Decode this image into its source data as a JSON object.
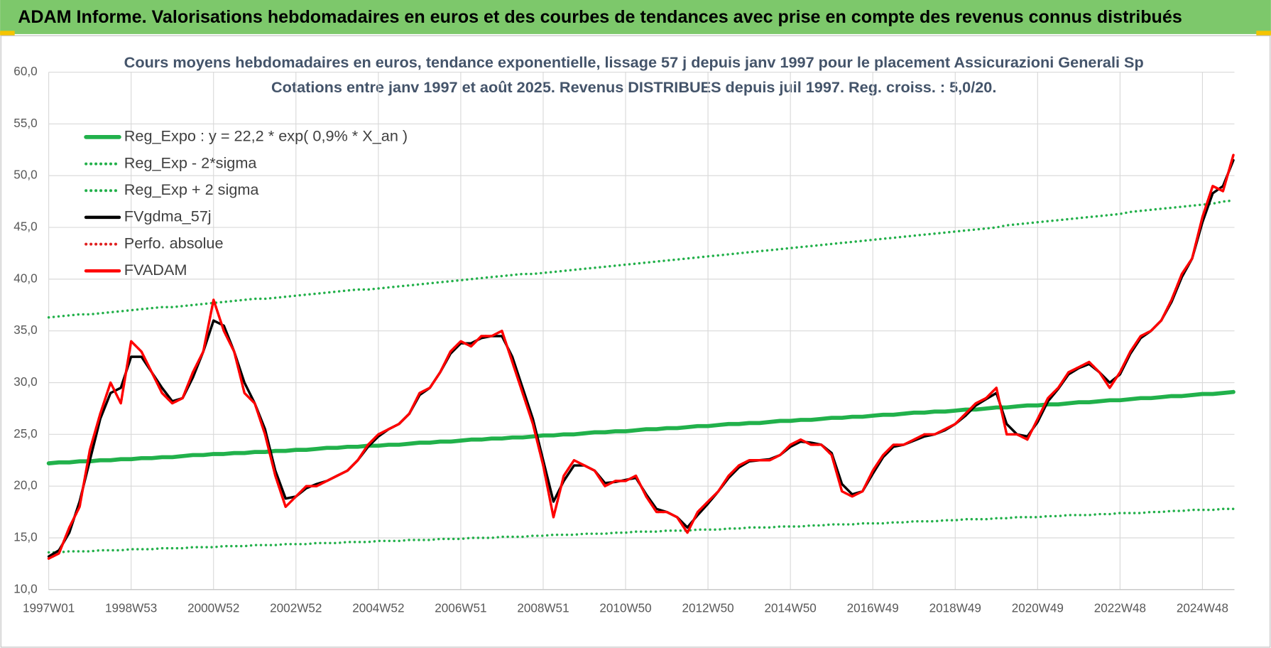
{
  "header": {
    "title": "ADAM Informe. Valorisations hebdomadaires en euros et des courbes de tendances avec prise en compte des revenus connus distribués"
  },
  "chart_data": {
    "type": "line",
    "title": "Cours moyens hebdomadaires en euros, tendance exponentielle, lissage 57 j depuis janv 1997 pour le placement Assicurazioni Generali Sp",
    "subtitle": "Cotations entre janv 1997 et août 2025. Revenus DISTRIBUES depuis juil 1997. Reg. croiss. : 5,0/20.",
    "categories": [
      "1997W01",
      null,
      null,
      null,
      null,
      null,
      null,
      null,
      "1998W53",
      null,
      null,
      null,
      null,
      null,
      null,
      null,
      "2000W52",
      null,
      null,
      null,
      null,
      null,
      null,
      null,
      "2002W52",
      null,
      null,
      null,
      null,
      null,
      null,
      null,
      "2004W52",
      null,
      null,
      null,
      null,
      null,
      null,
      null,
      "2006W51",
      null,
      null,
      null,
      null,
      null,
      null,
      null,
      "2008W51",
      null,
      null,
      null,
      null,
      null,
      null,
      null,
      "2010W50",
      null,
      null,
      null,
      null,
      null,
      null,
      null,
      "2012W50",
      null,
      null,
      null,
      null,
      null,
      null,
      null,
      "2014W50",
      null,
      null,
      null,
      null,
      null,
      null,
      null,
      "2016W49",
      null,
      null,
      null,
      null,
      null,
      null,
      null,
      "2018W49",
      null,
      null,
      null,
      null,
      null,
      null,
      null,
      "2020W49",
      null,
      null,
      null,
      null,
      null,
      null,
      null,
      "2022W48",
      null,
      null,
      null,
      null,
      null,
      null,
      null,
      "2024W48",
      null,
      null,
      null
    ],
    "ylim": [
      10,
      60
    ],
    "yticks": [
      {
        "value": 10,
        "label": "10,0"
      },
      {
        "value": 15,
        "label": "15,0"
      },
      {
        "value": 20,
        "label": "20,0"
      },
      {
        "value": 25,
        "label": "25,0"
      },
      {
        "value": 30,
        "label": "30,0"
      },
      {
        "value": 35,
        "label": "35,0"
      },
      {
        "value": 40,
        "label": "40,0"
      },
      {
        "value": 45,
        "label": "45,0"
      },
      {
        "value": 50,
        "label": "50,0"
      },
      {
        "value": 55,
        "label": "55,0"
      },
      {
        "value": 60,
        "label": "60,0"
      }
    ],
    "grid": true,
    "legend": "upper left",
    "series": [
      {
        "name": "Reg_Expo : y = 22,2 * exp( 0,9% *  X_an )",
        "color": "#21b14b",
        "style": "solid",
        "values": [
          22.2,
          22.3,
          22.3,
          22.4,
          22.4,
          22.5,
          22.5,
          22.6,
          22.6,
          22.7,
          22.7,
          22.8,
          22.8,
          22.9,
          23.0,
          23.0,
          23.1,
          23.1,
          23.2,
          23.2,
          23.3,
          23.3,
          23.4,
          23.4,
          23.5,
          23.5,
          23.6,
          23.7,
          23.7,
          23.8,
          23.8,
          23.9,
          23.9,
          24.0,
          24.0,
          24.1,
          24.2,
          24.2,
          24.3,
          24.3,
          24.4,
          24.5,
          24.5,
          24.6,
          24.6,
          24.7,
          24.7,
          24.8,
          24.9,
          24.9,
          25.0,
          25.0,
          25.1,
          25.2,
          25.2,
          25.3,
          25.3,
          25.4,
          25.5,
          25.5,
          25.6,
          25.6,
          25.7,
          25.8,
          25.8,
          25.9,
          26.0,
          26.0,
          26.1,
          26.1,
          26.2,
          26.3,
          26.3,
          26.4,
          26.4,
          26.5,
          26.6,
          26.6,
          26.7,
          26.7,
          26.8,
          26.9,
          26.9,
          27.0,
          27.1,
          27.1,
          27.2,
          27.2,
          27.3,
          27.4,
          27.4,
          27.5,
          27.6,
          27.6,
          27.7,
          27.8,
          27.8,
          27.9,
          27.9,
          28.0,
          28.1,
          28.1,
          28.2,
          28.3,
          28.3,
          28.4,
          28.5,
          28.5,
          28.6,
          28.7,
          28.7,
          28.8,
          28.9,
          28.9,
          29.0,
          29.1
        ]
      },
      {
        "name": "Reg_Exp - 2*sigma",
        "color": "#22b04a",
        "style": "dotted",
        "values": [
          13.6,
          13.6,
          13.7,
          13.7,
          13.7,
          13.8,
          13.8,
          13.8,
          13.9,
          13.9,
          13.9,
          14.0,
          14.0,
          14.0,
          14.1,
          14.1,
          14.1,
          14.2,
          14.2,
          14.2,
          14.3,
          14.3,
          14.3,
          14.4,
          14.4,
          14.4,
          14.5,
          14.5,
          14.5,
          14.6,
          14.6,
          14.6,
          14.7,
          14.7,
          14.7,
          14.8,
          14.8,
          14.8,
          14.9,
          14.9,
          14.9,
          15.0,
          15.0,
          15.0,
          15.1,
          15.1,
          15.1,
          15.2,
          15.2,
          15.3,
          15.3,
          15.3,
          15.4,
          15.4,
          15.4,
          15.5,
          15.5,
          15.6,
          15.6,
          15.6,
          15.7,
          15.7,
          15.7,
          15.8,
          15.8,
          15.8,
          15.9,
          15.9,
          16.0,
          16.0,
          16.0,
          16.1,
          16.1,
          16.1,
          16.2,
          16.2,
          16.3,
          16.3,
          16.3,
          16.4,
          16.4,
          16.4,
          16.5,
          16.5,
          16.6,
          16.6,
          16.6,
          16.7,
          16.7,
          16.8,
          16.8,
          16.8,
          16.9,
          16.9,
          17.0,
          17.0,
          17.0,
          17.1,
          17.1,
          17.2,
          17.2,
          17.2,
          17.3,
          17.3,
          17.4,
          17.4,
          17.4,
          17.5,
          17.5,
          17.6,
          17.6,
          17.7,
          17.7,
          17.7,
          17.8,
          17.8
        ]
      },
      {
        "name": "Reg_Exp + 2 sigma",
        "color": "#22b04a",
        "style": "dotted",
        "values": [
          36.3,
          36.4,
          36.5,
          36.6,
          36.6,
          36.7,
          36.8,
          36.9,
          37.0,
          37.1,
          37.2,
          37.3,
          37.3,
          37.4,
          37.5,
          37.6,
          37.7,
          37.8,
          37.9,
          38.0,
          38.1,
          38.1,
          38.2,
          38.3,
          38.4,
          38.5,
          38.6,
          38.7,
          38.8,
          38.9,
          39.0,
          39.0,
          39.1,
          39.2,
          39.3,
          39.4,
          39.5,
          39.6,
          39.7,
          39.8,
          39.9,
          40.0,
          40.1,
          40.2,
          40.3,
          40.4,
          40.5,
          40.5,
          40.6,
          40.7,
          40.8,
          40.9,
          41.0,
          41.1,
          41.2,
          41.3,
          41.4,
          41.5,
          41.6,
          41.7,
          41.8,
          41.9,
          42.0,
          42.1,
          42.2,
          42.3,
          42.4,
          42.5,
          42.6,
          42.7,
          42.8,
          42.9,
          43.0,
          43.1,
          43.2,
          43.3,
          43.4,
          43.5,
          43.6,
          43.7,
          43.8,
          43.9,
          44.0,
          44.1,
          44.2,
          44.3,
          44.4,
          44.5,
          44.6,
          44.7,
          44.8,
          44.9,
          45.0,
          45.2,
          45.3,
          45.4,
          45.5,
          45.6,
          45.7,
          45.8,
          45.9,
          46.0,
          46.1,
          46.2,
          46.3,
          46.5,
          46.6,
          46.7,
          46.8,
          46.9,
          47.0,
          47.1,
          47.2,
          47.3,
          47.5,
          47.6
        ]
      },
      {
        "name": "FVgdma_57j",
        "color": "#000000",
        "style": "solid",
        "values": [
          13.2,
          13.8,
          15.5,
          18.5,
          22.5,
          26.5,
          29,
          29.5,
          32.5,
          32.5,
          31,
          29.5,
          28.2,
          28.5,
          30.5,
          33,
          36,
          35.5,
          33,
          30,
          28,
          25.5,
          21.5,
          18.8,
          19,
          19.8,
          20.2,
          20.5,
          21,
          21.5,
          22.5,
          23.8,
          24.8,
          25.5,
          26,
          27,
          28.8,
          29.5,
          31,
          32.8,
          33.8,
          33.8,
          34.3,
          34.5,
          34.5,
          32.5,
          29.5,
          26.5,
          22.5,
          18.5,
          20.5,
          22,
          22,
          21.5,
          20.3,
          20.4,
          20.6,
          20.8,
          19.2,
          17.8,
          17.5,
          17,
          16,
          17.2,
          18.3,
          19.5,
          20.8,
          21.8,
          22.4,
          22.5,
          22.6,
          23,
          23.8,
          24.3,
          24.2,
          24,
          23.2,
          20.2,
          19.2,
          19.5,
          21.2,
          22.8,
          23.8,
          24,
          24.4,
          24.8,
          25,
          25.4,
          26,
          26.8,
          27.8,
          28.4,
          29,
          26,
          25,
          24.8,
          26.2,
          28.2,
          29.4,
          30.8,
          31.4,
          31.8,
          31,
          30,
          30.8,
          32.8,
          34.3,
          35,
          36,
          37.8,
          40.2,
          42,
          45.5,
          48.3,
          49,
          51.5
        ]
      },
      {
        "name": "Perfo. absolue",
        "color": "#e02020",
        "style": "dotted",
        "values": [
          13,
          13.5,
          16,
          18,
          23.5,
          27,
          30,
          28,
          34,
          33,
          31,
          29,
          28,
          28.5,
          31,
          33,
          38,
          35,
          33,
          29,
          28,
          25,
          21,
          18,
          19,
          20,
          20,
          20.5,
          21,
          21.5,
          22.5,
          24,
          25,
          25.5,
          26,
          27,
          29,
          29.5,
          31,
          33,
          34,
          33.5,
          34.5,
          34.5,
          35,
          32,
          29,
          26,
          22,
          17,
          21,
          22.5,
          22,
          21.5,
          20,
          20.5,
          20.5,
          21,
          19,
          17.5,
          17.5,
          17,
          15.5,
          17.5,
          18.5,
          19.5,
          21,
          22,
          22.5,
          22.5,
          22.5,
          23,
          24,
          24.5,
          24,
          24,
          23,
          19.5,
          19,
          19.5,
          21.5,
          23,
          24,
          24,
          24.5,
          25,
          25,
          25.5,
          26,
          27,
          28,
          28.5,
          29.5,
          25,
          25,
          24.5,
          26.5,
          28.5,
          29.5,
          31,
          31.5,
          32,
          31,
          29.5,
          31,
          33,
          34.5,
          35,
          36,
          38,
          40.5,
          42,
          46,
          49,
          48.5,
          52
        ]
      },
      {
        "name": "FVADAM",
        "color": "#ff0000",
        "style": "solid",
        "values": [
          13,
          13.5,
          16,
          18,
          23.5,
          27,
          30,
          28,
          34,
          33,
          31,
          29,
          28,
          28.5,
          31,
          33,
          38,
          35,
          33,
          29,
          28,
          25,
          21,
          18,
          19,
          20,
          20,
          20.5,
          21,
          21.5,
          22.5,
          24,
          25,
          25.5,
          26,
          27,
          29,
          29.5,
          31,
          33,
          34,
          33.5,
          34.5,
          34.5,
          35,
          32,
          29,
          26,
          22,
          17,
          21,
          22.5,
          22,
          21.5,
          20,
          20.5,
          20.5,
          21,
          19,
          17.5,
          17.5,
          17,
          15.5,
          17.5,
          18.5,
          19.5,
          21,
          22,
          22.5,
          22.5,
          22.5,
          23,
          24,
          24.5,
          24,
          24,
          23,
          19.5,
          19,
          19.5,
          21.5,
          23,
          24,
          24,
          24.5,
          25,
          25,
          25.5,
          26,
          27,
          28,
          28.5,
          29.5,
          25,
          25,
          24.5,
          26.5,
          28.5,
          29.5,
          31,
          31.5,
          32,
          31,
          29.5,
          31,
          33,
          34.5,
          35,
          36,
          38,
          40.5,
          42,
          46,
          49,
          48.5,
          52
        ]
      }
    ]
  }
}
